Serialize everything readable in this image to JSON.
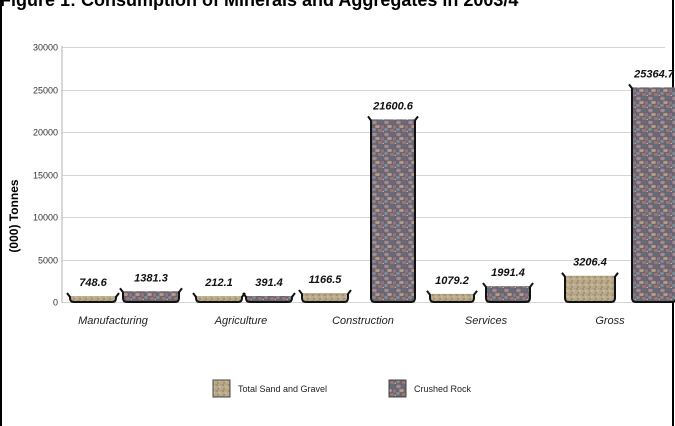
{
  "chart_data": {
    "type": "bar",
    "title": "Figure 1: Consumption of Minerals and Aggregates in 2003/4",
    "ylabel": "(000) Tonnes",
    "xlabel": "",
    "ylim": [
      0,
      30000
    ],
    "yticks": [
      0,
      5000,
      10000,
      15000,
      20000,
      25000,
      30000
    ],
    "grid": true,
    "legend_position": "bottom-center",
    "categories": [
      "Manufacturing",
      "Agriculture",
      "Construction",
      "Services",
      "Gross"
    ],
    "series": [
      {
        "name": "Total Sand and Gravel",
        "values": [
          748.6,
          212.1,
          1166.5,
          1079.2,
          3206.4
        ],
        "labels": [
          "748.6",
          "212.1",
          "1166.5",
          "1079.2",
          "3206.4"
        ],
        "color": "#b8a888"
      },
      {
        "name": "Crushed Rock",
        "values": [
          1381.3,
          391.4,
          21600.6,
          1991.4,
          25364.7
        ],
        "labels": [
          "1381.3",
          "391.4",
          "21600.6",
          "1991.4",
          "25364.7"
        ],
        "color": "#7a6a78"
      }
    ]
  }
}
